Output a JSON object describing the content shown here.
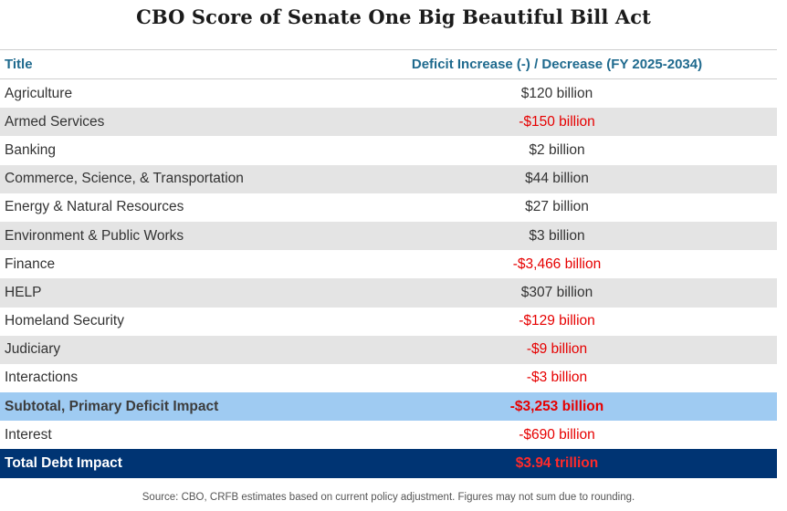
{
  "title": "CBO Score of Senate One Big Beautiful Bill Act",
  "header": {
    "col1": "Title",
    "col2": "Deficit Increase (-) / Decrease (FY 2025-2034)"
  },
  "rows": [
    {
      "title": "Agriculture",
      "value": "$120 billion",
      "negative": false
    },
    {
      "title": "Armed Services",
      "value": "-$150 billion",
      "negative": true
    },
    {
      "title": "Banking",
      "value": "$2 billion",
      "negative": false
    },
    {
      "title": "Commerce, Science, & Transportation",
      "value": "$44 billion",
      "negative": false
    },
    {
      "title": "Energy & Natural Resources",
      "value": "$27 billion",
      "negative": false
    },
    {
      "title": "Environment & Public Works",
      "value": "$3 billion",
      "negative": false
    },
    {
      "title": "Finance",
      "value": "-$3,466 billion",
      "negative": true
    },
    {
      "title": "HELP",
      "value": "$307 billion",
      "negative": false
    },
    {
      "title": "Homeland Security",
      "value": "-$129 billion",
      "negative": true
    },
    {
      "title": "Judiciary",
      "value": "-$9 billion",
      "negative": true
    },
    {
      "title": "Interactions",
      "value": "-$3 billion",
      "negative": true
    }
  ],
  "subtotal": {
    "title": "Subtotal, Primary Deficit Impact",
    "value": "-$3,253 billion"
  },
  "interest": {
    "title": "Interest",
    "value": "-$690 billion"
  },
  "total": {
    "title": "Total Debt Impact",
    "value": "$3.94 trillion"
  },
  "source": "Source: CBO, CRFB estimates based on current policy adjustment. Figures may not sum due to rounding.",
  "colors": {
    "header_text": "#1f6a8e",
    "negative": "#e60000",
    "subtotal_bg": "#9fcbf2",
    "total_bg": "#003473",
    "stripe": "#e4e4e4"
  }
}
